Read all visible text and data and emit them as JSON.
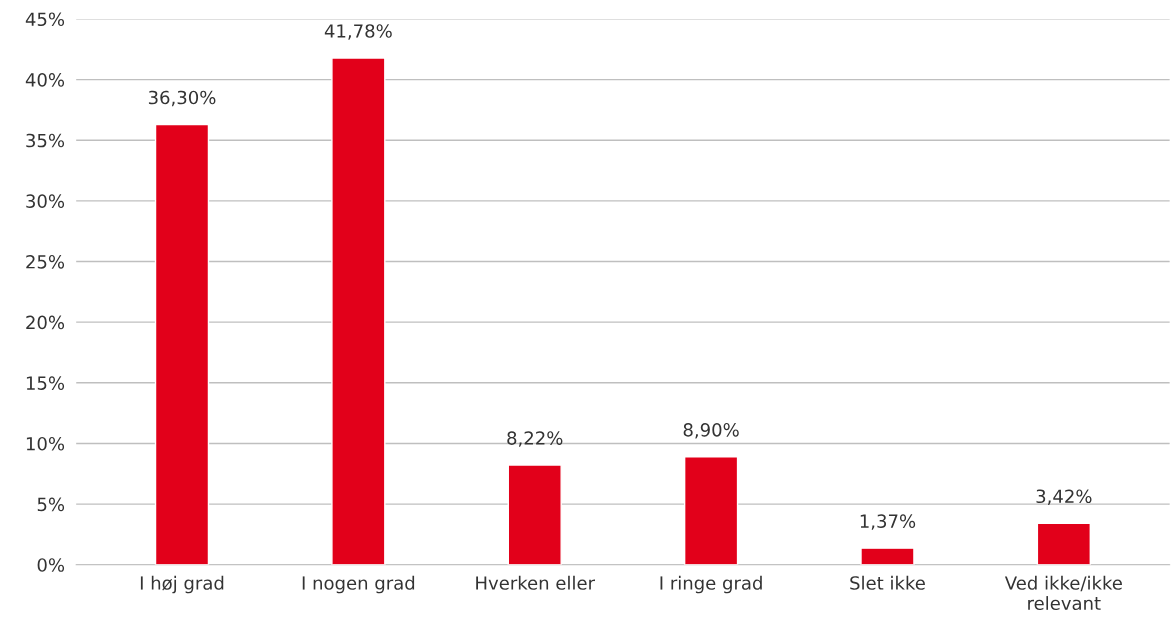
{
  "chart_data": {
    "type": "bar",
    "categories": [
      "I høj grad",
      "I nogen grad",
      "Hverken eller",
      "I ringe grad",
      "Slet ikke",
      "Ved ikke/ikke relevant"
    ],
    "values": [
      36.3,
      41.78,
      8.22,
      8.9,
      1.37,
      3.42
    ],
    "value_labels": [
      "36,30%",
      "41,78%",
      "8,22%",
      "8,90%",
      "1,37%",
      "3,42%"
    ],
    "color": "#e2001a",
    "ylim": [
      0,
      45
    ],
    "yticks": [
      {
        "value": 0,
        "label": "0%"
      },
      {
        "value": 5,
        "label": "5%"
      },
      {
        "value": 10,
        "label": "10%"
      },
      {
        "value": 15,
        "label": "15%"
      },
      {
        "value": 20,
        "label": "20%"
      },
      {
        "value": 25,
        "label": "25%"
      },
      {
        "value": 30,
        "label": "30%"
      },
      {
        "value": 35,
        "label": "35%"
      },
      {
        "value": 40,
        "label": "40%"
      },
      {
        "value": 45,
        "label": "45%"
      }
    ],
    "grid": "y"
  }
}
